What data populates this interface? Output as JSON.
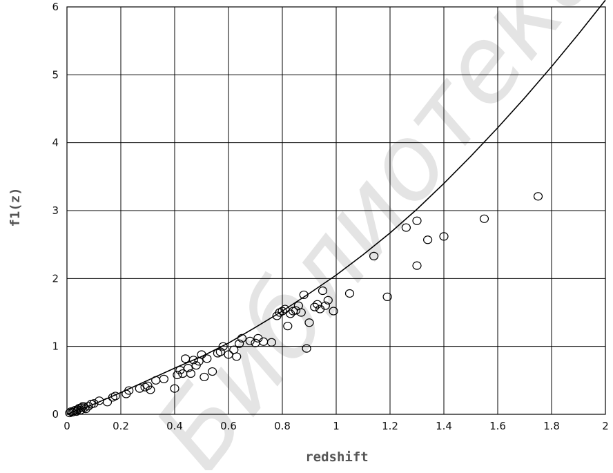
{
  "chart_data": {
    "type": "scatter",
    "xlabel": "redshift",
    "ylabel": "f1(z)",
    "xlim": [
      0,
      2
    ],
    "ylim": [
      0,
      6
    ],
    "x_ticks": [
      0,
      0.2,
      0.4,
      0.6,
      0.8,
      1,
      1.2,
      1.4,
      1.6,
      1.8,
      2
    ],
    "x_tick_labels": [
      "0",
      "0.2",
      "0.4",
      "0.6",
      "0.8",
      "1",
      "1.2",
      "1.4",
      "1.6",
      "1.8",
      "2"
    ],
    "y_ticks": [
      0,
      1,
      2,
      3,
      4,
      5,
      6
    ],
    "y_tick_labels": [
      "0",
      "1",
      "2",
      "3",
      "4",
      "5",
      "6"
    ],
    "grid": true,
    "watermark": "Библиотека БГУИР",
    "series": [
      {
        "marker": "circle",
        "x": [
          0.01,
          0.015,
          0.02,
          0.025,
          0.03,
          0.035,
          0.04,
          0.045,
          0.05,
          0.055,
          0.06,
          0.065,
          0.07,
          0.08,
          0.09,
          0.1,
          0.12,
          0.15,
          0.17,
          0.18,
          0.22,
          0.23,
          0.27,
          0.29,
          0.3,
          0.31,
          0.33,
          0.36,
          0.4,
          0.41,
          0.42,
          0.43,
          0.44,
          0.45,
          0.46,
          0.47,
          0.48,
          0.49,
          0.5,
          0.51,
          0.52,
          0.54,
          0.56,
          0.57,
          0.58,
          0.6,
          0.62,
          0.63,
          0.64,
          0.65,
          0.68,
          0.7,
          0.71,
          0.73,
          0.76,
          0.78,
          0.79,
          0.8,
          0.81,
          0.82,
          0.83,
          0.84,
          0.85,
          0.86,
          0.87,
          0.88,
          0.89,
          0.9,
          0.92,
          0.93,
          0.94,
          0.95,
          0.96,
          0.97,
          0.99,
          1.05,
          1.14,
          1.19,
          1.26,
          1.3,
          1.3,
          1.34,
          1.4,
          1.55,
          1.75
        ],
        "y": [
          0.02,
          0.04,
          0.03,
          0.05,
          0.06,
          0.04,
          0.07,
          0.09,
          0.06,
          0.1,
          0.12,
          0.1,
          0.08,
          0.12,
          0.15,
          0.16,
          0.2,
          0.18,
          0.25,
          0.27,
          0.3,
          0.35,
          0.38,
          0.4,
          0.42,
          0.36,
          0.5,
          0.52,
          0.38,
          0.58,
          0.65,
          0.6,
          0.82,
          0.68,
          0.6,
          0.8,
          0.72,
          0.78,
          0.88,
          0.55,
          0.82,
          0.63,
          0.9,
          0.92,
          1.0,
          0.88,
          0.95,
          0.85,
          1.04,
          1.12,
          1.08,
          1.05,
          1.12,
          1.07,
          1.06,
          1.45,
          1.5,
          1.52,
          1.55,
          1.3,
          1.48,
          1.52,
          1.53,
          1.6,
          1.5,
          1.76,
          0.97,
          1.35,
          1.58,
          1.62,
          1.55,
          1.82,
          1.6,
          1.68,
          1.52,
          1.78,
          2.33,
          1.73,
          2.75,
          2.85,
          2.19,
          2.57,
          2.62,
          2.88,
          3.21
        ]
      },
      {
        "marker": "line",
        "x": [
          0,
          0.1,
          0.2,
          0.3,
          0.4,
          0.5,
          0.6,
          0.7,
          0.8,
          0.9,
          1.0,
          1.1,
          1.2,
          1.3,
          1.4,
          1.5,
          1.6,
          1.7,
          1.8,
          1.9,
          2.0
        ],
        "y": [
          0,
          0.15,
          0.32,
          0.5,
          0.68,
          0.85,
          1.05,
          1.28,
          1.52,
          1.78,
          2.05,
          2.35,
          2.67,
          3.02,
          3.4,
          3.8,
          4.22,
          4.66,
          5.12,
          5.6,
          6.1
        ]
      }
    ]
  }
}
